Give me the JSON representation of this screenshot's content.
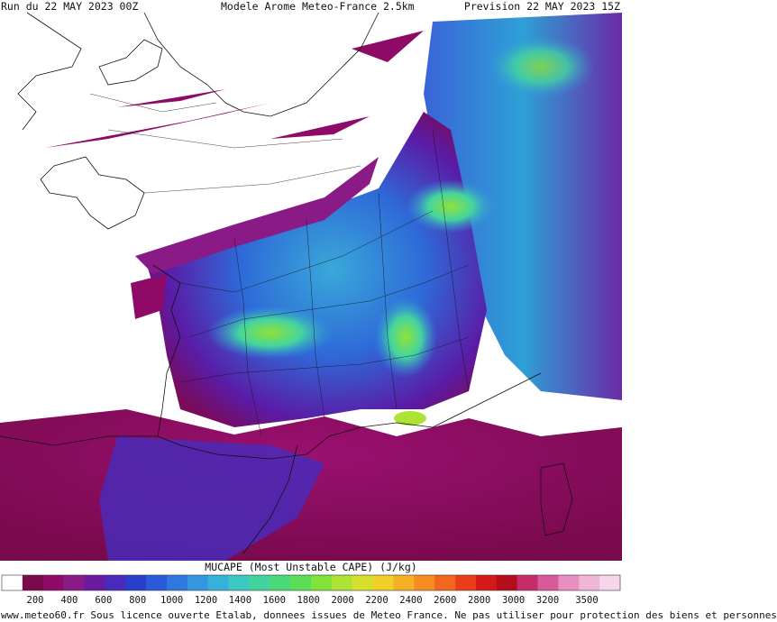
{
  "header": {
    "run": "Run du 22 MAY 2023 00Z",
    "model": "Modele Arome Meteo-France 2.5km",
    "forecast": "Prevision 22 MAY 2023 15Z"
  },
  "colorbar": {
    "title": "MUCAPE (Most Unstable CAPE) (J/kg)",
    "ticks": [
      "200",
      "400",
      "600",
      "800",
      "1000",
      "1200",
      "1400",
      "1600",
      "1800",
      "2000",
      "2200",
      "2400",
      "2600",
      "2800",
      "3000",
      "3200",
      "3500"
    ],
    "colors": [
      "#ffffff",
      "#7a0a4e",
      "#8e0a66",
      "#8a1a86",
      "#6a1aa0",
      "#4a2ab8",
      "#2a3ecc",
      "#2a5ad8",
      "#2e78e0",
      "#3296e0",
      "#36b2da",
      "#3ec8c4",
      "#44d2a0",
      "#4ad878",
      "#5ade58",
      "#80e23a",
      "#aee234",
      "#d6e02c",
      "#f0d028",
      "#f6b026",
      "#f68c22",
      "#f2661e",
      "#ea3e1a",
      "#d41a18",
      "#b40e1c",
      "#c42c6a",
      "#d85a9a",
      "#e88ec0",
      "#f0b6d6",
      "#f6d6e8"
    ]
  },
  "footer": {
    "credit": "www.meteo60.fr Sous licence ouverte Etalab, donnees issues de Meteo France. Ne pas utiliser pour protection des biens et personnes"
  }
}
